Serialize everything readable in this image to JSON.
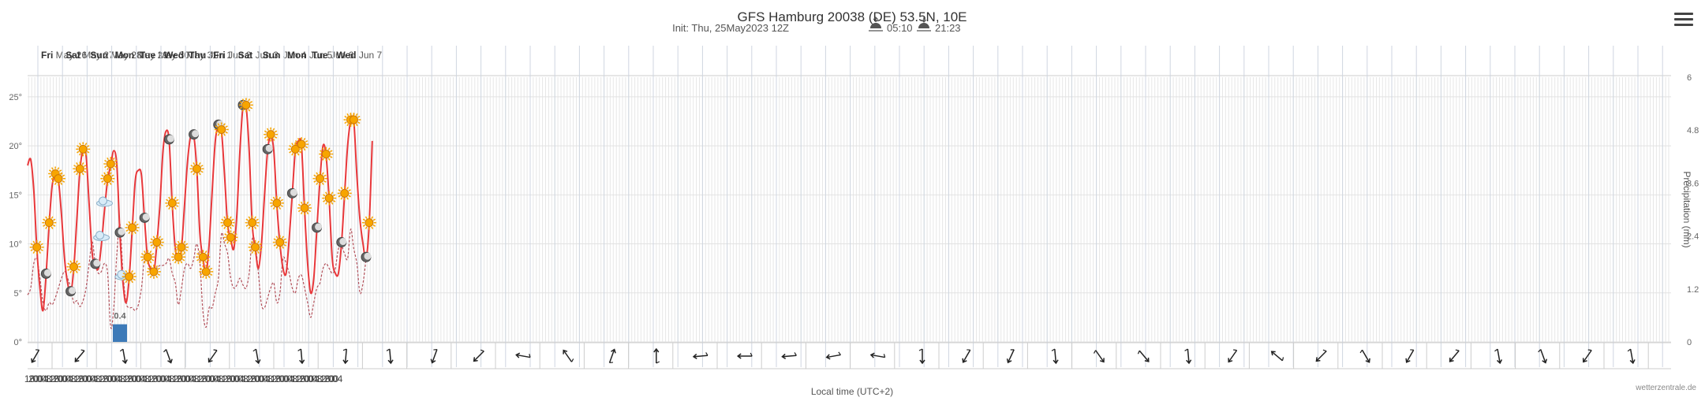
{
  "title": "GFS Hamburg 20038 (DE) 53.5N, 10E",
  "subtitle": {
    "init": "Init: Thu, 25May2023 12Z",
    "sunrise": "05:10",
    "sunset": "21:23"
  },
  "credits": "wetterzentrale.de",
  "colors": {
    "temperature": "#e8383b",
    "dewpoint": "#b3505a",
    "precipitation": "#3d7ab8",
    "grid": "#e7e7e7",
    "sun": "#f7a500"
  },
  "chart_data": {
    "type": "line",
    "xlabel": "Local time (UTC+2)",
    "ylabel_left": "",
    "ylabel_right": "Precipitation (mm)",
    "start_hour": 14,
    "step_hours": 3,
    "ylim_left": [
      0,
      27
    ],
    "ylim_right": [
      0,
      6
    ],
    "yticks_left": [
      "0°",
      "5°",
      "10°",
      "15°",
      "20°",
      "25°"
    ],
    "yticks_right": [
      "0",
      "1.2",
      "2.4",
      "3.6",
      "4.8",
      "6"
    ],
    "days": [
      {
        "name": "Fri",
        "date": "May 26"
      },
      {
        "name": "Sat",
        "date": "May 27"
      },
      {
        "name": "Sun",
        "date": "May 28"
      },
      {
        "name": "Mon",
        "date": "May 29"
      },
      {
        "name": "Tue",
        "date": "May 30"
      },
      {
        "name": "Wed",
        "date": "May 31"
      },
      {
        "name": "Thu",
        "date": "Jun 1"
      },
      {
        "name": "Fri",
        "date": "Jun 2"
      },
      {
        "name": "Sat",
        "date": "Jun 3"
      },
      {
        "name": "Sun",
        "date": "Jun 4"
      },
      {
        "name": "Mon",
        "date": "Jun 5"
      },
      {
        "name": "Tue",
        "date": "Jun 6"
      },
      {
        "name": "Wed",
        "date": "Jun 7"
      }
    ],
    "hour_labels": [
      "16",
      "20",
      "00",
      "04",
      "08",
      "12",
      "16",
      "20",
      "00",
      "04",
      "08",
      "12",
      "16",
      "20",
      "00",
      "04",
      "08",
      "12",
      "16",
      "20",
      "00",
      "04",
      "08",
      "12",
      "16",
      "20",
      "00",
      "04",
      "08",
      "12",
      "16",
      "20",
      "00",
      "04",
      "08",
      "12",
      "16",
      "20",
      "00",
      "04",
      "08",
      "12",
      "16",
      "20",
      "00",
      "04",
      "08",
      "12",
      "16",
      "20",
      "00",
      "04",
      "08",
      "12",
      "16",
      "20",
      "00",
      "04",
      "08",
      "12",
      "16",
      "20",
      "00",
      "04",
      "08",
      "12",
      "16",
      "20",
      "00",
      "04",
      "08",
      "12",
      "16",
      "20",
      "00",
      "04"
    ],
    "series": [
      {
        "name": "Temperature",
        "unit": "°C",
        "values": [
          18.0,
          18.6,
          15.5,
          9.5,
          5.5,
          3.2,
          6.8,
          12.0,
          16.0,
          17.0,
          16.5,
          13.0,
          8.5,
          6.0,
          5.0,
          7.5,
          12.5,
          17.5,
          19.5,
          19.0,
          14.0,
          9.0,
          7.8,
          7.5,
          10.0,
          13.5,
          16.5,
          18.0,
          19.5,
          18.0,
          11.0,
          6.0,
          4.0,
          6.5,
          11.5,
          16.5,
          17.5,
          17.0,
          12.5,
          8.5,
          7.5,
          7.0,
          10.0,
          14.0,
          19.5,
          21.5,
          20.5,
          14.0,
          9.5,
          8.5,
          9.5,
          14.0,
          18.5,
          21.0,
          21.0,
          17.5,
          11.0,
          8.5,
          7.0,
          10.0,
          15.5,
          20.5,
          22.0,
          21.5,
          17.0,
          12.0,
          10.5,
          9.5,
          13.0,
          19.5,
          24.0,
          24.0,
          19.5,
          12.0,
          9.5,
          7.5,
          10.0,
          15.0,
          19.5,
          21.0,
          19.5,
          14.0,
          10.0,
          7.5,
          7.0,
          10.5,
          15.0,
          19.5,
          20.5,
          20.0,
          13.5,
          8.0,
          5.0,
          6.5,
          11.5,
          16.5,
          20.0,
          19.0,
          14.5,
          8.5,
          7.0,
          7.0,
          10.0,
          15.0,
          20.0,
          22.5,
          22.5,
          17.0,
          12.5,
          10.0,
          8.5,
          12.0,
          20.5
        ]
      },
      {
        "name": "Dew point",
        "unit": "°C",
        "values": [
          4.8,
          5.5,
          8.0,
          8.5,
          6.5,
          4.0,
          3.2,
          4.0,
          3.8,
          4.5,
          5.5,
          6.5,
          7.2,
          6.5,
          5.5,
          4.0,
          4.2,
          3.6,
          4.2,
          5.5,
          8.0,
          10.2,
          8.0,
          7.0,
          7.2,
          8.0,
          7.0,
          1.5,
          3.5,
          9.0,
          12.0,
          7.0,
          4.0,
          3.5,
          3.5,
          3.2,
          3.8,
          5.5,
          8.5,
          8.3,
          7.0,
          6.8,
          7.5,
          7.8,
          7.8,
          8.0,
          8.5,
          7.0,
          6.0,
          3.8,
          5.5,
          7.5,
          8.0,
          7.5,
          8.5,
          10.0,
          8.0,
          3.0,
          1.5,
          3.5,
          3.5,
          5.0,
          6.5,
          11.0,
          10.0,
          9.0,
          6.5,
          5.5,
          5.8,
          6.5,
          5.8,
          5.5,
          7.0,
          10.5,
          10.0,
          7.0,
          3.8,
          3.5,
          4.5,
          5.5,
          6.0,
          4.0,
          5.0,
          8.5,
          8.0,
          7.0,
          5.5,
          5.0,
          6.5,
          6.8,
          5.5,
          4.0,
          2.5,
          4.0,
          5.5,
          6.0,
          7.5,
          8.0,
          7.5,
          7.0,
          7.5,
          9.5,
          9.8,
          9.0,
          8.5,
          11.5,
          9.5,
          8.0,
          5.0,
          6.0,
          8.5
        ]
      },
      {
        "name": "Precipitation",
        "unit": "mm",
        "bars": [
          {
            "index": 30,
            "value": 0.4,
            "label": "0.4"
          }
        ]
      }
    ]
  }
}
